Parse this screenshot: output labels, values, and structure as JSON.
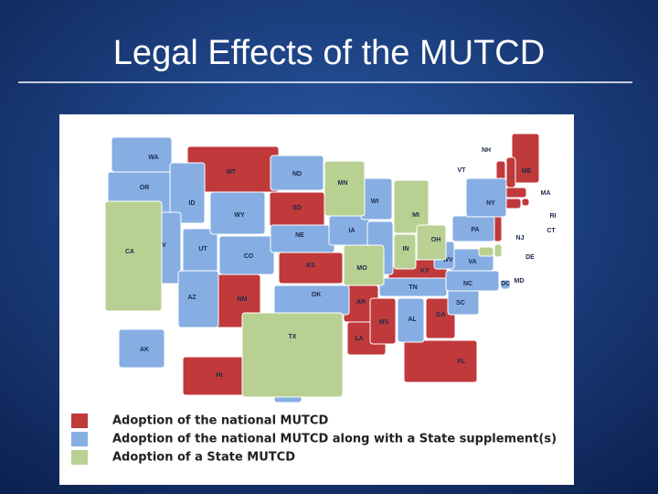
{
  "title": "Legal Effects of the MUTCD",
  "map": {
    "legend": [
      {
        "label": "Adoption of the national MUTCD",
        "color": "#c0393b",
        "states": [
          "MT",
          "SD",
          "KS",
          "NM",
          "AR",
          "LA",
          "MS",
          "GA",
          "FL",
          "KY",
          "ME",
          "NH",
          "VT",
          "MA",
          "RI",
          "CT",
          "NJ",
          "HI"
        ]
      },
      {
        "label": "Adoption of the national MUTCD along with a State supplement(s)",
        "color": "#86aee3",
        "states": [
          "WA",
          "OR",
          "ID",
          "NV",
          "UT",
          "AZ",
          "WY",
          "CO",
          "ND",
          "NE",
          "OK",
          "IA",
          "IL",
          "WI",
          "TN",
          "AL",
          "SC",
          "NC",
          "VA",
          "WV",
          "PA",
          "NY",
          "DC",
          "AK",
          "PR"
        ]
      },
      {
        "label": "Adoption of a State MUTCD",
        "color": "#b8d193",
        "states": [
          "CA",
          "MN",
          "MO",
          "TX",
          "MI",
          "IN",
          "OH",
          "DE",
          "MD"
        ]
      }
    ]
  }
}
